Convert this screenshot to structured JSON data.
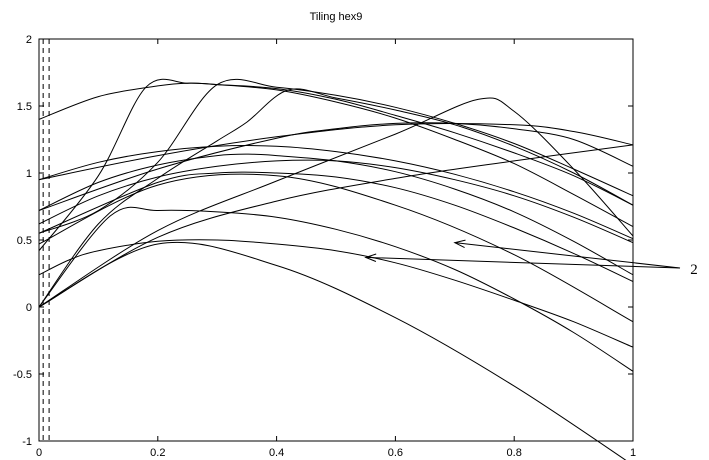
{
  "chart_data": {
    "type": "line",
    "title": "Tiling hex9",
    "xlabel": "",
    "ylabel": "",
    "xlim": [
      0,
      1
    ],
    "ylim": [
      -1,
      2
    ],
    "x_ticks": [
      "0",
      "0.2",
      "0.4",
      "0.6",
      "0.8",
      "1"
    ],
    "y_ticks": [
      "-1",
      "-0.5",
      "0",
      "0.5",
      "1",
      "1.5",
      "2"
    ],
    "grid": false,
    "legend": "none",
    "line_color": "#000000",
    "vertical_dashed_lines_x": [
      0.007,
      0.017
    ],
    "annotation": {
      "text": "2",
      "arrow_targets": [
        [
          0.7,
          0.48
        ],
        [
          0.55,
          0.37
        ]
      ]
    },
    "series": [
      {
        "x": [
          0.0,
          0.2,
          0.4,
          0.6,
          0.8,
          1.0
        ],
        "y": [
          0.0,
          0.47,
          0.31,
          -0.08,
          -0.59,
          -1.18
        ]
      },
      {
        "x": [
          0.0,
          0.05,
          0.1,
          0.2,
          0.3,
          0.4,
          0.5,
          0.6,
          0.7,
          0.8,
          0.9,
          1.0
        ],
        "y": [
          0.24,
          0.35,
          0.42,
          0.49,
          0.5,
          0.47,
          0.42,
          0.33,
          0.2,
          0.05,
          -0.11,
          -0.3
        ]
      },
      {
        "x": [
          0.0,
          0.12,
          0.2,
          0.3,
          0.4,
          0.5,
          0.6,
          0.7,
          0.8,
          0.9,
          1.0
        ],
        "y": [
          0.0,
          0.68,
          0.72,
          0.71,
          0.67,
          0.58,
          0.45,
          0.28,
          0.06,
          -0.19,
          -0.48
        ]
      },
      {
        "x": [
          0.0,
          0.2,
          0.4,
          0.6,
          0.8,
          1.0
        ],
        "y": [
          0.47,
          0.91,
          0.98,
          0.76,
          0.39,
          -0.11
        ]
      },
      {
        "x": [
          0.0,
          0.2,
          0.4,
          0.6,
          0.8,
          1.0
        ],
        "y": [
          0.0,
          0.52,
          0.79,
          0.96,
          1.09,
          1.21
        ]
      },
      {
        "x": [
          0.0,
          0.2,
          0.3,
          0.4,
          0.5,
          0.6,
          0.7,
          0.8,
          0.9,
          1.0
        ],
        "y": [
          0.55,
          0.93,
          1.0,
          1.0,
          0.97,
          0.89,
          0.76,
          0.59,
          0.4,
          0.19
        ]
      },
      {
        "x": [
          0.0,
          0.1,
          0.2,
          0.3,
          0.4,
          0.5,
          0.6,
          0.7,
          0.8,
          0.9,
          1.0
        ],
        "y": [
          0.62,
          0.83,
          0.97,
          1.05,
          1.09,
          1.09,
          1.04,
          0.95,
          0.83,
          0.67,
          0.48
        ]
      },
      {
        "x": [
          0.0,
          0.1,
          0.2,
          0.3,
          0.36,
          0.4,
          0.5,
          0.6,
          0.7,
          0.8,
          0.9,
          1.0
        ],
        "y": [
          0.72,
          0.93,
          1.06,
          1.13,
          1.14,
          1.13,
          1.09,
          1.01,
          0.88,
          0.71,
          0.49,
          0.24
        ]
      },
      {
        "x": [
          0.0,
          0.1,
          0.2,
          0.3,
          0.4,
          0.5,
          0.6,
          0.7,
          0.8,
          0.9,
          1.0
        ],
        "y": [
          0.95,
          1.08,
          1.16,
          1.2,
          1.2,
          1.16,
          1.09,
          0.99,
          0.86,
          0.7,
          0.51
        ]
      },
      {
        "x": [
          0.0,
          0.2,
          0.4,
          0.5,
          0.6,
          0.7,
          0.8,
          0.9,
          1.0
        ],
        "y": [
          0.72,
          1.03,
          1.26,
          1.33,
          1.37,
          1.37,
          1.33,
          1.25,
          1.05
        ]
      },
      {
        "x": [
          0.0,
          0.2,
          0.4,
          0.6,
          0.8,
          0.9,
          1.0
        ],
        "y": [
          0.95,
          1.13,
          1.27,
          1.36,
          1.36,
          1.31,
          1.21
        ]
      },
      {
        "x": [
          0.0,
          0.1,
          0.2,
          0.25,
          0.3,
          0.4,
          0.5,
          0.6,
          0.7,
          0.8,
          0.9,
          1.0
        ],
        "y": [
          1.4,
          1.57,
          1.65,
          1.67,
          1.66,
          1.62,
          1.53,
          1.41,
          1.25,
          1.07,
          0.84,
          0.6
        ]
      },
      {
        "x": [
          0.0,
          0.1,
          0.18,
          0.25,
          0.3,
          0.4,
          0.5,
          0.6,
          0.7,
          0.8,
          0.9,
          1.0
        ],
        "y": [
          0.42,
          0.98,
          1.64,
          1.67,
          1.66,
          1.63,
          1.55,
          1.43,
          1.3,
          1.15,
          0.98,
          0.76
        ]
      },
      {
        "x": [
          0.0,
          0.1,
          0.2,
          0.3,
          0.4,
          0.5,
          0.6,
          0.7,
          0.8,
          0.9,
          1.0
        ],
        "y": [
          0.55,
          0.72,
          1.08,
          1.66,
          1.64,
          1.58,
          1.49,
          1.37,
          1.22,
          1.03,
          0.83
        ]
      },
      {
        "x": [
          0.0,
          0.1,
          0.2,
          0.3,
          0.35,
          0.42,
          0.5,
          0.6,
          0.7,
          0.8,
          0.9,
          1.0
        ],
        "y": [
          0.0,
          0.62,
          0.96,
          1.24,
          1.38,
          1.62,
          1.56,
          1.47,
          1.36,
          1.2,
          1.0,
          0.76
        ]
      },
      {
        "x": [
          0.0,
          0.2,
          0.4,
          0.6,
          0.74,
          0.8,
          0.9,
          1.0
        ],
        "y": [
          0.0,
          0.57,
          0.94,
          1.29,
          1.55,
          1.46,
          1.03,
          0.53
        ]
      }
    ]
  }
}
